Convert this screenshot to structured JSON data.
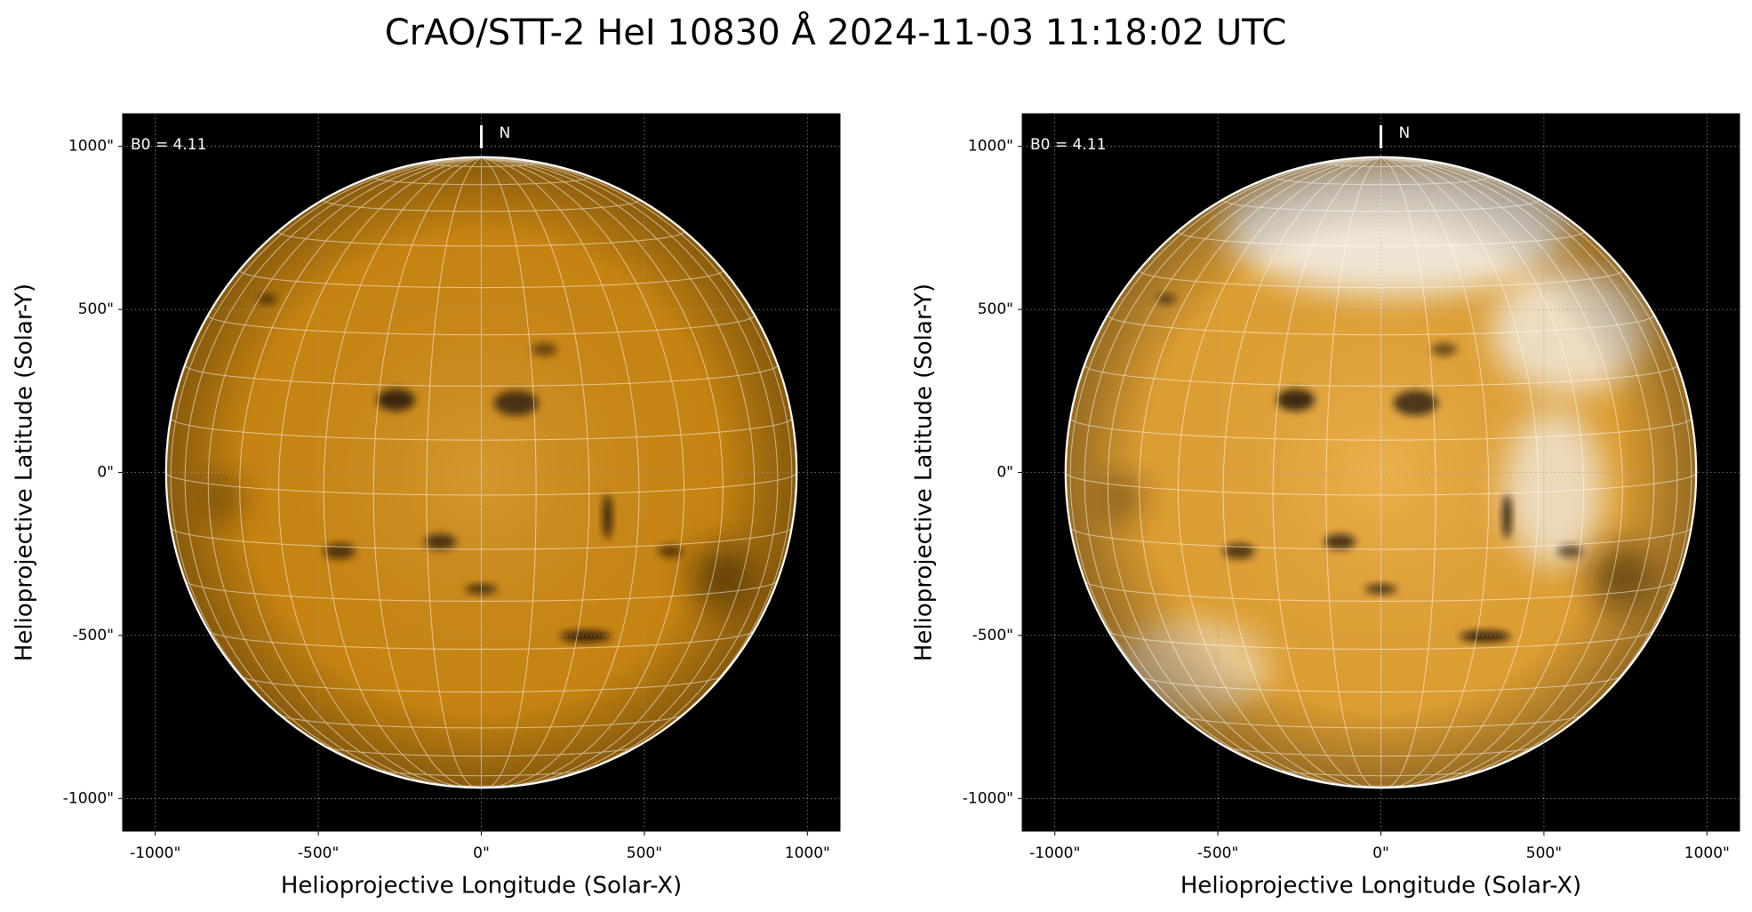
{
  "title": "CrAO/STT-2 HeI 10830 Å 2024-11-03 11:18:02 UTC",
  "chart_data": [
    {
      "type": "solar_map",
      "xlabel": "Helioprojective Longitude (Solar-X)",
      "ylabel": "Helioprojective Latitude (Solar-Y)",
      "xlim": [
        -1100,
        1100
      ],
      "ylim": [
        -1100,
        1100
      ],
      "xticks": [
        {
          "value": -1000,
          "label": "-1000\""
        },
        {
          "value": -500,
          "label": "-500\""
        },
        {
          "value": 0,
          "label": "0\""
        },
        {
          "value": 500,
          "label": "500\""
        },
        {
          "value": 1000,
          "label": "1000\""
        }
      ],
      "yticks": [
        {
          "value": -1000,
          "label": "-1000\""
        },
        {
          "value": -500,
          "label": "-500\""
        },
        {
          "value": 0,
          "label": "0\""
        },
        {
          "value": 500,
          "label": "500\""
        },
        {
          "value": 1000,
          "label": "1000\""
        }
      ],
      "grid": true,
      "annotation": {
        "value": 4.11,
        "label": "B0 = 4.11"
      },
      "north_label": "N",
      "disk_radius": 967,
      "graticule_step": 10,
      "color": "#d08a12"
    },
    {
      "type": "solar_map",
      "xlabel": "Helioprojective Longitude (Solar-X)",
      "ylabel": "Helioprojective Latitude (Solar-Y)",
      "xlim": [
        -1100,
        1100
      ],
      "ylim": [
        -1100,
        1100
      ],
      "xticks": [
        {
          "value": -1000,
          "label": "-1000\""
        },
        {
          "value": -500,
          "label": "-500\""
        },
        {
          "value": 0,
          "label": "0\""
        },
        {
          "value": 500,
          "label": "500\""
        },
        {
          "value": 1000,
          "label": "1000\""
        }
      ],
      "yticks": [
        {
          "value": -1000,
          "label": "-1000\""
        },
        {
          "value": -500,
          "label": "-500\""
        },
        {
          "value": 0,
          "label": "0\""
        },
        {
          "value": 500,
          "label": "500\""
        },
        {
          "value": 1000,
          "label": "1000\""
        }
      ],
      "grid": true,
      "annotation": {
        "value": 4.11,
        "label": "B0 = 4.11"
      },
      "north_label": "N",
      "disk_radius": 967,
      "graticule_step": 10,
      "color": "#e8a534"
    }
  ]
}
